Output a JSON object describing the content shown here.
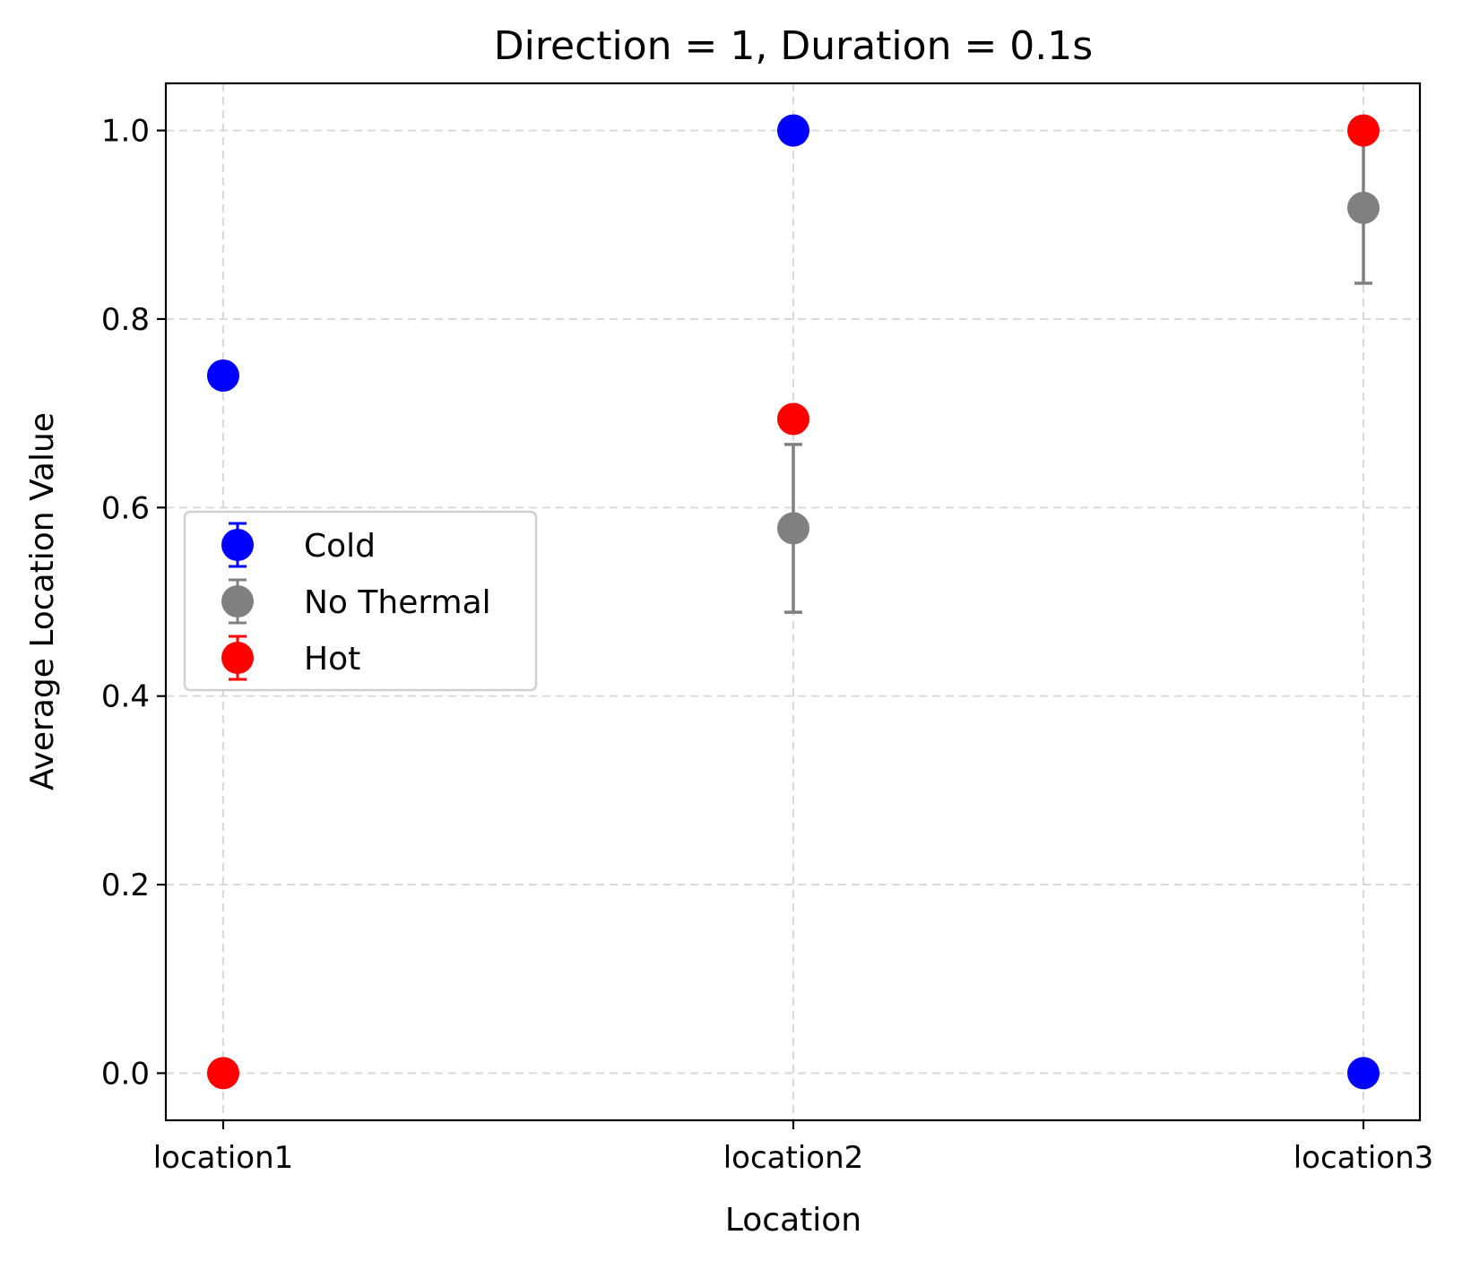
{
  "chart_data": {
    "type": "scatter",
    "title": "Direction = 1, Duration = 0.1s",
    "xlabel": "Location",
    "ylabel": "Average Location Value",
    "categories": [
      "location1",
      "location2",
      "location3"
    ],
    "ylim": [
      -0.05,
      1.05
    ],
    "yticks": [
      0.0,
      0.2,
      0.4,
      0.6,
      0.8,
      1.0
    ],
    "ytick_labels": [
      "0.0",
      "0.2",
      "0.4",
      "0.6",
      "0.8",
      "1.0"
    ],
    "grid": true,
    "legend_position": "center-left",
    "series": [
      {
        "name": "Cold",
        "color": "#0000ff",
        "values": [
          0.74,
          1.0,
          0.0
        ],
        "errors": [
          0,
          0,
          0
        ]
      },
      {
        "name": "No Thermal",
        "color": "#808080",
        "values": [
          null,
          0.578,
          0.918
        ],
        "errors": [
          null,
          0.089,
          0.08
        ]
      },
      {
        "name": "Hot",
        "color": "#ff0000",
        "values": [
          0.0,
          0.694,
          1.0
        ],
        "errors": [
          0,
          0,
          0
        ]
      }
    ]
  }
}
